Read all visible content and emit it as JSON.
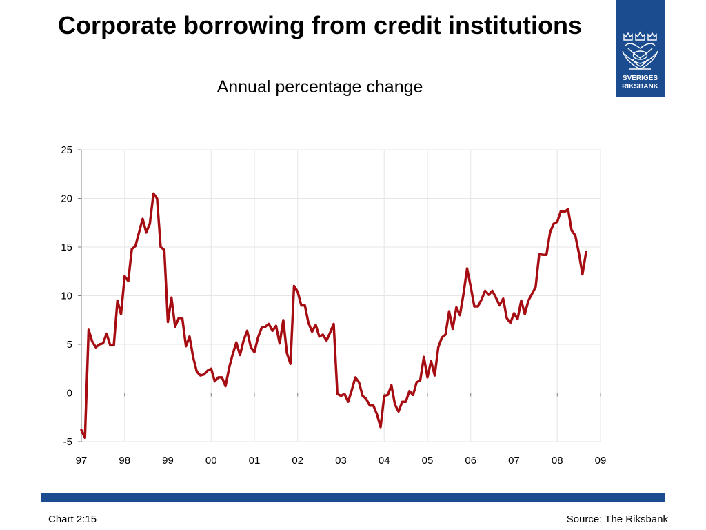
{
  "header": {
    "title": "Corporate borrowing from credit institutions",
    "subtitle": "Annual percentage change"
  },
  "logo": {
    "line1": "SVERIGES",
    "line2": "RIKSBANK",
    "color": "#1a4c8f"
  },
  "footer": {
    "chart_id": "Chart 2:15",
    "source": "Source: The Riksbank",
    "bar_color": "#1a4c8f"
  },
  "chart_data": {
    "type": "line",
    "title": "Corporate borrowing from credit institutions",
    "subtitle": "Annual percentage change",
    "xlabel": "",
    "ylabel": "",
    "xlim": [
      1997,
      2009
    ],
    "ylim": [
      -5,
      25
    ],
    "yticks": [
      -5,
      0,
      5,
      10,
      15,
      20,
      25
    ],
    "xticks": [
      1997,
      1998,
      1999,
      2000,
      2001,
      2002,
      2003,
      2004,
      2005,
      2006,
      2007,
      2008,
      2009
    ],
    "xtick_labels": [
      "97",
      "98",
      "99",
      "00",
      "01",
      "02",
      "03",
      "04",
      "05",
      "06",
      "07",
      "08",
      "09"
    ],
    "grid": true,
    "legend": "none",
    "series": [
      {
        "color": "#a50d12",
        "x": [
          1997.0,
          1997.083,
          1997.167,
          1997.25,
          1997.333,
          1997.417,
          1997.5,
          1997.583,
          1997.667,
          1997.75,
          1997.833,
          1997.917,
          1998.0,
          1998.083,
          1998.167,
          1998.25,
          1998.333,
          1998.417,
          1998.5,
          1998.583,
          1998.667,
          1998.75,
          1998.833,
          1998.917,
          1999.0,
          1999.083,
          1999.167,
          1999.25,
          1999.333,
          1999.417,
          1999.5,
          1999.583,
          1999.667,
          1999.75,
          1999.833,
          1999.917,
          2000.0,
          2000.083,
          2000.167,
          2000.25,
          2000.333,
          2000.417,
          2000.5,
          2000.583,
          2000.667,
          2000.75,
          2000.833,
          2000.917,
          2001.0,
          2001.083,
          2001.167,
          2001.25,
          2001.333,
          2001.417,
          2001.5,
          2001.583,
          2001.667,
          2001.75,
          2001.833,
          2001.917,
          2002.0,
          2002.083,
          2002.167,
          2002.25,
          2002.333,
          2002.417,
          2002.5,
          2002.583,
          2002.667,
          2002.75,
          2002.833,
          2002.917,
          2003.0,
          2003.083,
          2003.167,
          2003.25,
          2003.333,
          2003.417,
          2003.5,
          2003.583,
          2003.667,
          2003.75,
          2003.833,
          2003.917,
          2004.0,
          2004.083,
          2004.167,
          2004.25,
          2004.333,
          2004.417,
          2004.5,
          2004.583,
          2004.667,
          2004.75,
          2004.833,
          2004.917,
          2005.0,
          2005.083,
          2005.167,
          2005.25,
          2005.333,
          2005.417,
          2005.5,
          2005.583,
          2005.667,
          2005.75,
          2005.833,
          2005.917,
          2006.0,
          2006.083,
          2006.167,
          2006.25,
          2006.333,
          2006.417,
          2006.5,
          2006.583,
          2006.667,
          2006.75,
          2006.833,
          2006.917,
          2007.0,
          2007.083,
          2007.167,
          2007.25,
          2007.333,
          2007.417,
          2007.5,
          2007.583,
          2007.667,
          2007.75,
          2007.833,
          2007.917,
          2008.0,
          2008.083,
          2008.167,
          2008.25,
          2008.333,
          2008.417,
          2008.5,
          2008.583,
          2008.667
        ],
        "y": [
          -3.8,
          -4.6,
          6.5,
          5.3,
          4.7,
          5.0,
          5.1,
          6.1,
          4.9,
          4.9,
          9.5,
          8.1,
          12.0,
          11.5,
          14.8,
          15.1,
          16.5,
          17.9,
          16.5,
          17.4,
          20.5,
          20.0,
          15.0,
          14.7,
          7.3,
          9.8,
          6.8,
          7.7,
          7.7,
          4.8,
          5.8,
          3.7,
          2.2,
          1.8,
          1.9,
          2.3,
          2.5,
          1.2,
          1.6,
          1.6,
          0.7,
          2.6,
          4.0,
          5.2,
          3.9,
          5.4,
          6.4,
          4.7,
          4.2,
          5.7,
          6.7,
          6.8,
          7.1,
          6.4,
          6.9,
          5.1,
          7.5,
          4.1,
          3.0,
          11.0,
          10.4,
          9.0,
          9.0,
          7.2,
          6.3,
          7.0,
          5.8,
          6.0,
          5.4,
          6.2,
          7.1,
          -0.1,
          -0.3,
          -0.1,
          -0.9,
          0.3,
          1.6,
          1.1,
          -0.3,
          -0.6,
          -1.3,
          -1.3,
          -2.2,
          -3.5,
          -0.3,
          -0.2,
          0.8,
          -1.2,
          -1.9,
          -0.9,
          -0.9,
          0.2,
          -0.2,
          1.1,
          1.3,
          3.7,
          1.6,
          3.3,
          1.8,
          4.7,
          5.7,
          6.0,
          8.4,
          6.6,
          8.8,
          8.0,
          10.2,
          12.8,
          10.9,
          8.9,
          8.9,
          9.6,
          10.5,
          10.1,
          10.5,
          9.8,
          9.0,
          9.7,
          7.7,
          7.2,
          8.2,
          7.6,
          9.5,
          8.1,
          9.5,
          10.2,
          10.9,
          14.3,
          14.2,
          14.2,
          16.5,
          17.4,
          17.6,
          18.7,
          18.6,
          18.9,
          16.7,
          16.2,
          14.4,
          12.2,
          14.5
        ]
      }
    ]
  }
}
